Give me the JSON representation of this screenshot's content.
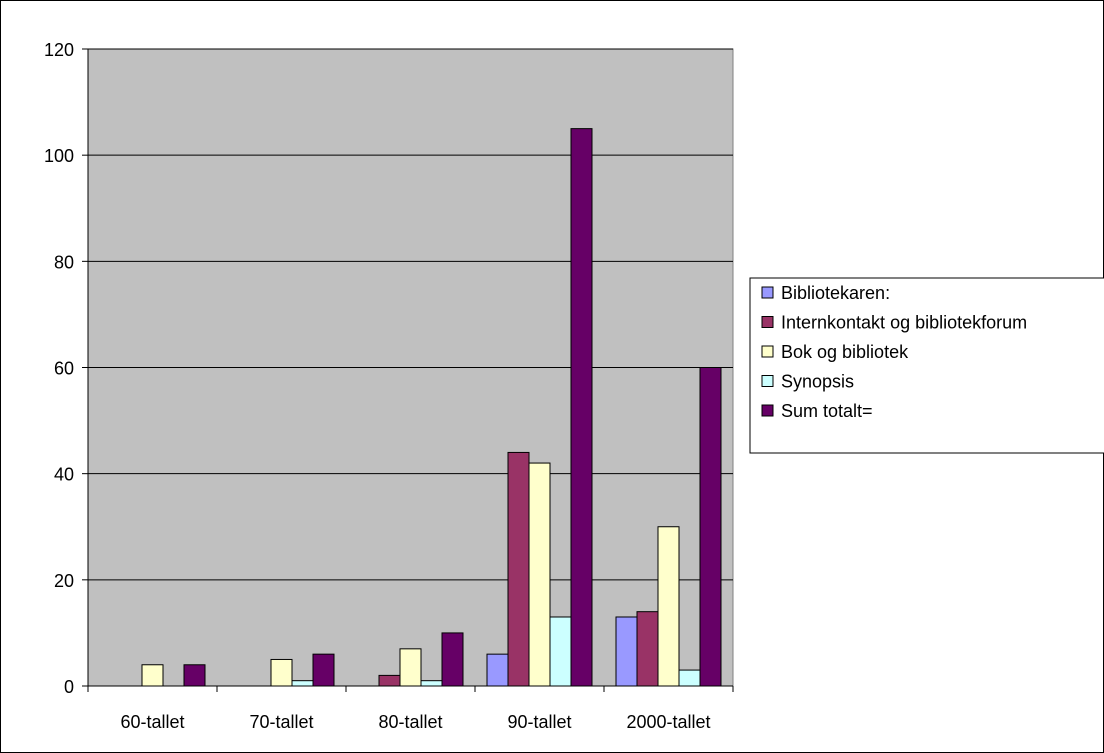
{
  "chart_data": {
    "type": "bar",
    "title": "",
    "xlabel": "",
    "ylabel": "",
    "categories": [
      "60-tallet",
      "70-tallet",
      "80-tallet",
      "90-tallet",
      "2000-tallet"
    ],
    "ylim": [
      0,
      120
    ],
    "yticks": [
      0,
      20,
      40,
      60,
      80,
      100,
      120
    ],
    "grid": true,
    "legend_position": "right",
    "plot_background": "#c0c0c0",
    "series": [
      {
        "name": "Bibliotekaren:",
        "color": "#9999ff",
        "values": [
          0,
          0,
          0,
          6,
          13
        ]
      },
      {
        "name": "Internkontakt og bibliotekforum",
        "color": "#993366",
        "values": [
          0,
          0,
          2,
          44,
          14
        ]
      },
      {
        "name": "Bok og bibliotek",
        "color": "#ffffcc",
        "values": [
          4,
          5,
          7,
          42,
          30
        ]
      },
      {
        "name": "Synopsis",
        "color": "#ccffff",
        "values": [
          0,
          1,
          1,
          13,
          3
        ]
      },
      {
        "name": "Sum totalt=",
        "color": "#660066",
        "values": [
          4,
          6,
          10,
          105,
          60
        ]
      }
    ]
  }
}
